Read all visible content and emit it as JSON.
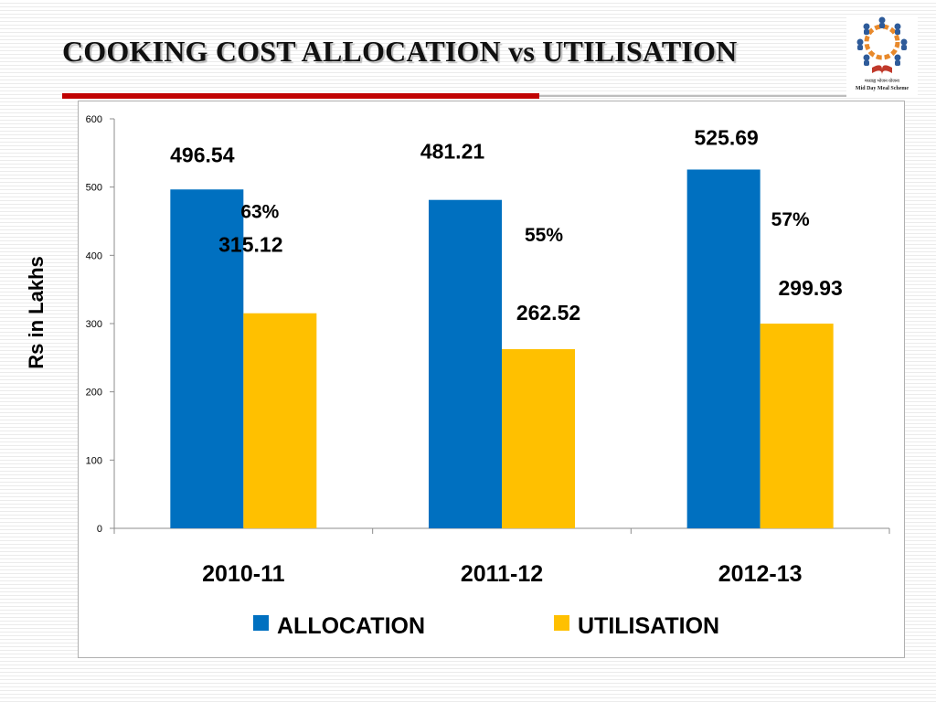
{
  "slide": {
    "title": "COOKING COST ALLOCATION vs UTILISATION"
  },
  "logo": {
    "caption_line1": "मध्याह्न भोजन योजना",
    "caption_line2": "Mid Day Meal Scheme",
    "colors": {
      "figure": "#2e5b9a",
      "ring": "#e8892b",
      "book": "#c0392b"
    }
  },
  "colors": {
    "title_rule": "#c00000",
    "allocation": "#0070c0",
    "utilisation": "#ffc000"
  },
  "chart_data": {
    "type": "bar",
    "title": "",
    "xlabel": "",
    "ylabel": "Rs in Lakhs",
    "ylim": [
      0,
      600
    ],
    "yticks": [
      0,
      100,
      200,
      300,
      400,
      500,
      600
    ],
    "categories": [
      "2010-11",
      "2011-12",
      "2012-13"
    ],
    "series": [
      {
        "name": "ALLOCATION",
        "color": "#0070c0",
        "values": [
          496.54,
          481.21,
          525.69
        ],
        "labels": [
          "496.54",
          "481.21",
          "525.69"
        ]
      },
      {
        "name": "UTILISATION",
        "color": "#ffc000",
        "values": [
          315.12,
          262.52,
          299.93
        ],
        "labels": [
          "315.12",
          "262.52",
          "299.93"
        ]
      }
    ],
    "percent_labels": [
      "63%",
      "55%",
      "57%"
    ],
    "grid": false,
    "legend": "bottom"
  }
}
